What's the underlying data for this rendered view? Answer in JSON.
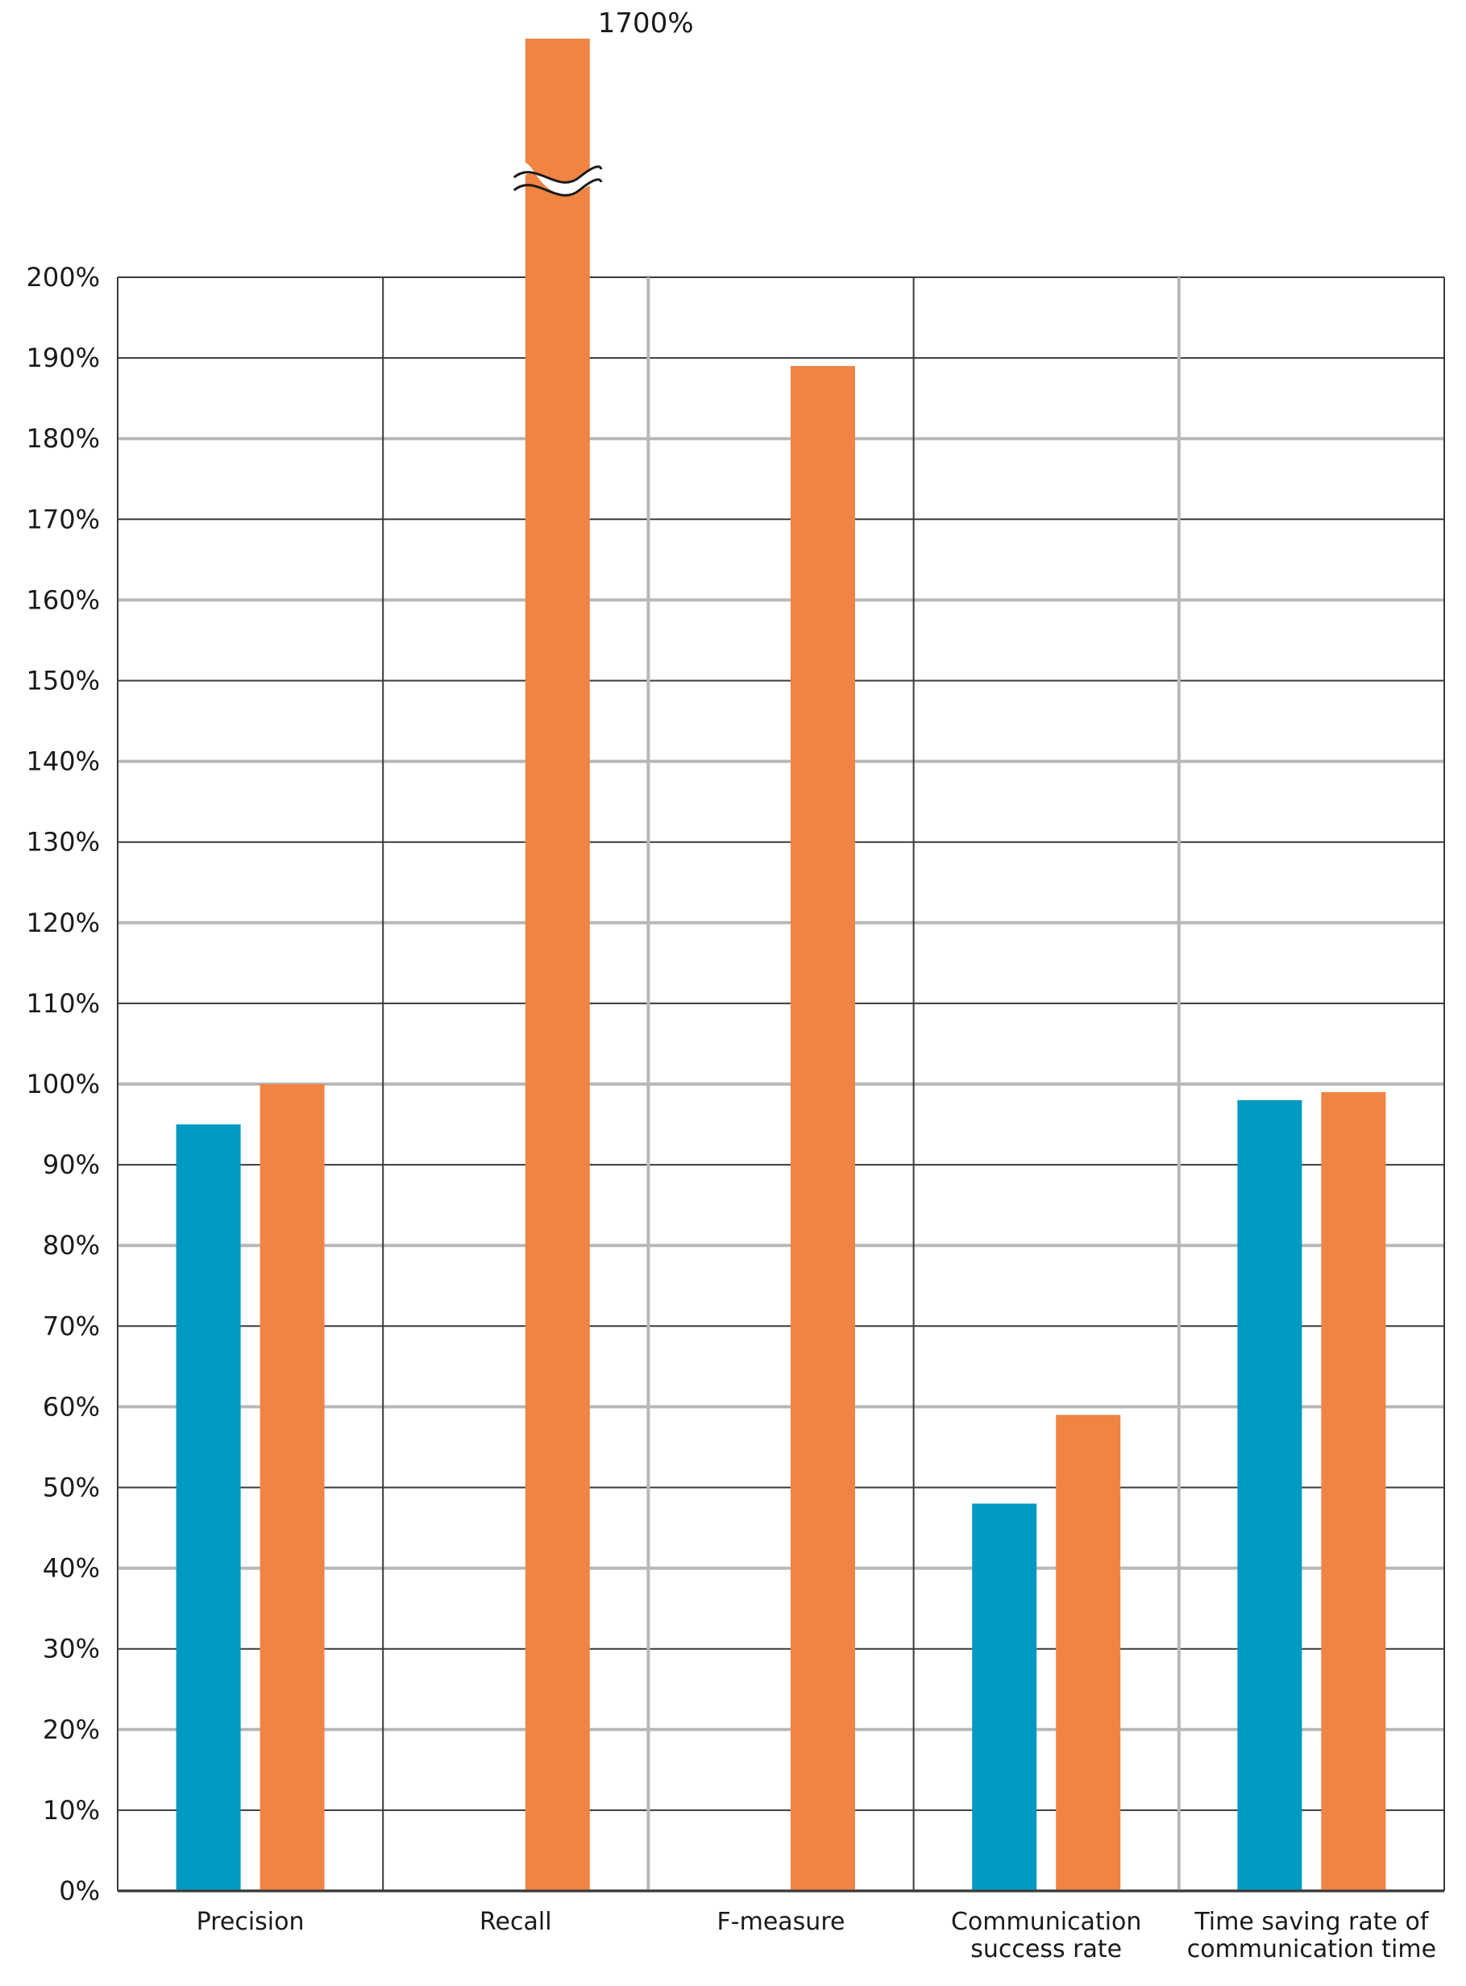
{
  "chart_data": {
    "type": "bar",
    "categories": [
      [
        "Precision"
      ],
      [
        "Recall"
      ],
      [
        "F-measure"
      ],
      [
        "Communication",
        "success rate"
      ],
      [
        "Time saving rate of",
        "communication time"
      ]
    ],
    "series": [
      {
        "color": "#0099C2",
        "values": [
          95,
          null,
          null,
          48,
          98
        ]
      },
      {
        "color": "#F08442",
        "values": [
          100,
          1700,
          189,
          59,
          99
        ]
      }
    ],
    "ylim": [
      0,
      200
    ],
    "yticks": [
      "0%",
      "10%",
      "20%",
      "30%",
      "40%",
      "50%",
      "60%",
      "70%",
      "80%",
      "90%",
      "100%",
      "110%",
      "120%",
      "130%",
      "140%",
      "150%",
      "160%",
      "170%",
      "180%",
      "190%",
      "200%"
    ],
    "axis_break": true,
    "annotations": [
      {
        "text": "1700%",
        "category_index": 1,
        "series_index": 1
      }
    ],
    "grid": true,
    "grid_colors": {
      "light": "#b8b8b8",
      "dark": "#3a3a3a"
    },
    "title": "",
    "xlabel": "",
    "ylabel": ""
  }
}
